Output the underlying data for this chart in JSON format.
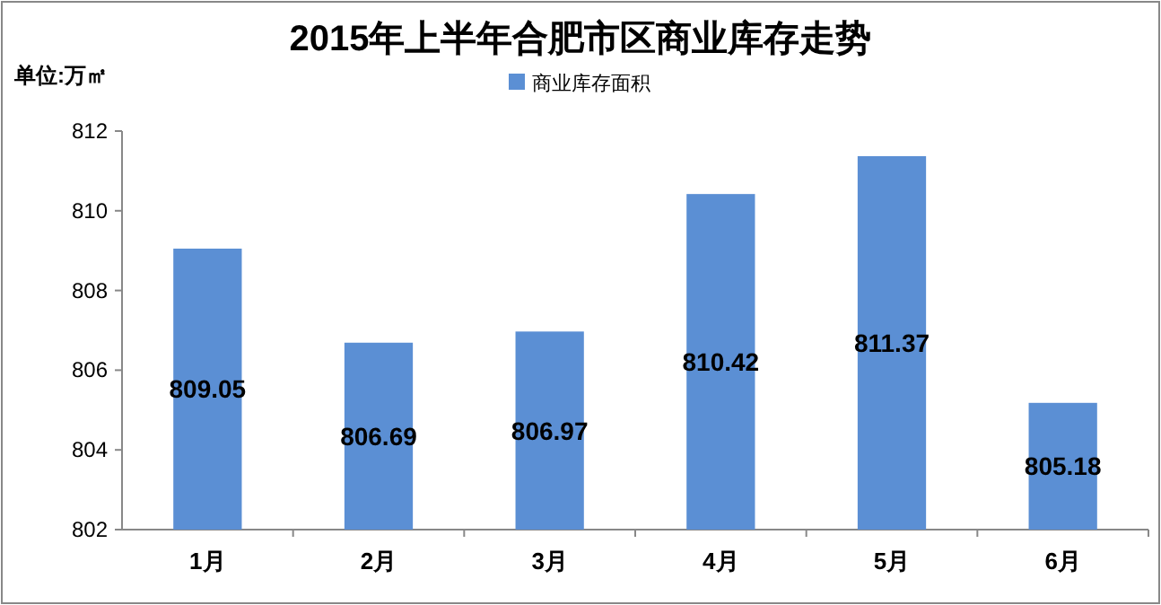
{
  "chart_data": {
    "type": "bar",
    "title": "2015年上半年合肥市区商业库存走势",
    "ylabel": "单位:万㎡",
    "legend": "top",
    "categories": [
      "1月",
      "2月",
      "3月",
      "4月",
      "5月",
      "6月"
    ],
    "series": [
      {
        "name": "商业库存面积",
        "color": "#5b8fd4",
        "values": [
          809.05,
          806.69,
          806.97,
          810.42,
          811.37,
          805.18
        ]
      }
    ],
    "ylim": [
      802,
      812
    ],
    "yticks": [
      802,
      804,
      806,
      808,
      810,
      812
    ],
    "data_labels": true,
    "grid": false
  }
}
